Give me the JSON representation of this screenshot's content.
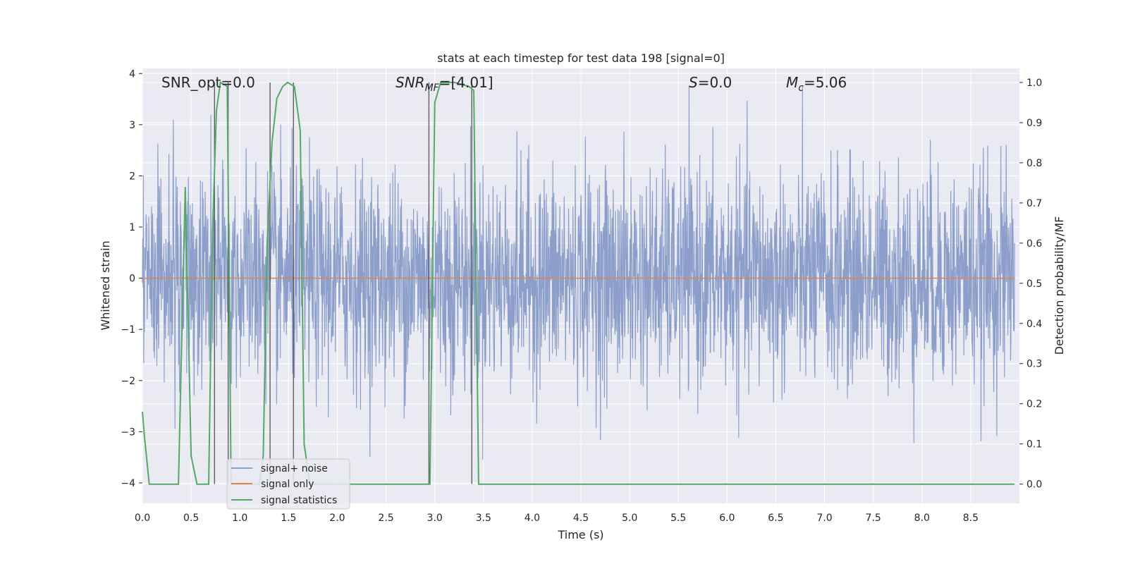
{
  "chart_data": {
    "type": "line",
    "title": "stats at each timestep for test data 198 [signal=0]",
    "xlabel": "Time (s)",
    "ylabel": "Whitened strain",
    "y2label": "Detection probability/MF",
    "xlim": [
      0,
      9
    ],
    "ylim": [
      -4.4,
      4.1
    ],
    "y2lim": [
      -0.048,
      1.035
    ],
    "xticks": [
      0.0,
      0.5,
      1.0,
      1.5,
      2.0,
      2.5,
      3.0,
      3.5,
      4.0,
      4.5,
      5.0,
      5.5,
      6.0,
      6.5,
      7.0,
      7.5,
      8.0,
      8.5
    ],
    "yticks": [
      -4,
      -3,
      -2,
      -1,
      0,
      1,
      2,
      3,
      4
    ],
    "y2ticks": [
      0.0,
      0.1,
      0.2,
      0.3,
      0.4,
      0.5,
      0.6,
      0.7,
      0.8,
      0.9,
      1.0
    ],
    "grid": true,
    "legend_position": "lower-left",
    "annotations": {
      "snr_opt": "SNR_opt=0.0",
      "snr_mf_main": "SNR",
      "snr_mf_sub": "MF",
      "snr_mf_value": "=[4.01]",
      "s_main": "S",
      "s_value": "=0.0",
      "mc_main": "M",
      "mc_sub": "c",
      "mc_value": "=5.06"
    },
    "series": [
      {
        "name": "signal+ noise",
        "color": "#8c9fcb",
        "noise_band": [
          -1.2,
          1.2
        ],
        "peak_max": 3.8,
        "peak_min": -3.6
      },
      {
        "name": "signal only",
        "color": "#dd8452",
        "values": 0
      },
      {
        "name": "signal statistics",
        "color": "#55a868",
        "axis": "right",
        "x": [
          0.0,
          0.02,
          0.07,
          0.15,
          0.3,
          0.37,
          0.44,
          0.5,
          0.56,
          0.68,
          0.72,
          0.76,
          0.8,
          0.87,
          0.91,
          0.95,
          1.2,
          1.24,
          1.28,
          1.33,
          1.38,
          1.44,
          1.49,
          1.56,
          1.62,
          1.66,
          1.72,
          2.9,
          2.95,
          3.0,
          3.06,
          3.2,
          3.35,
          3.4,
          3.45,
          3.49,
          4.0,
          8.95
        ],
        "y": [
          0.18,
          0.12,
          0.0,
          0.0,
          0.0,
          0.0,
          0.74,
          0.07,
          0.0,
          0.0,
          0.63,
          0.93,
          1.0,
          0.99,
          0.0,
          0.0,
          0.0,
          0.07,
          0.6,
          0.85,
          0.96,
          0.99,
          1.0,
          0.99,
          0.88,
          0.1,
          0.0,
          0.0,
          0.0,
          0.95,
          1.0,
          1.0,
          0.99,
          0.98,
          0.0,
          0.0,
          0.0,
          0.0
        ]
      }
    ],
    "vlines": [
      0.74,
      0.88,
      1.31,
      1.55,
      2.94,
      3.38
    ]
  }
}
